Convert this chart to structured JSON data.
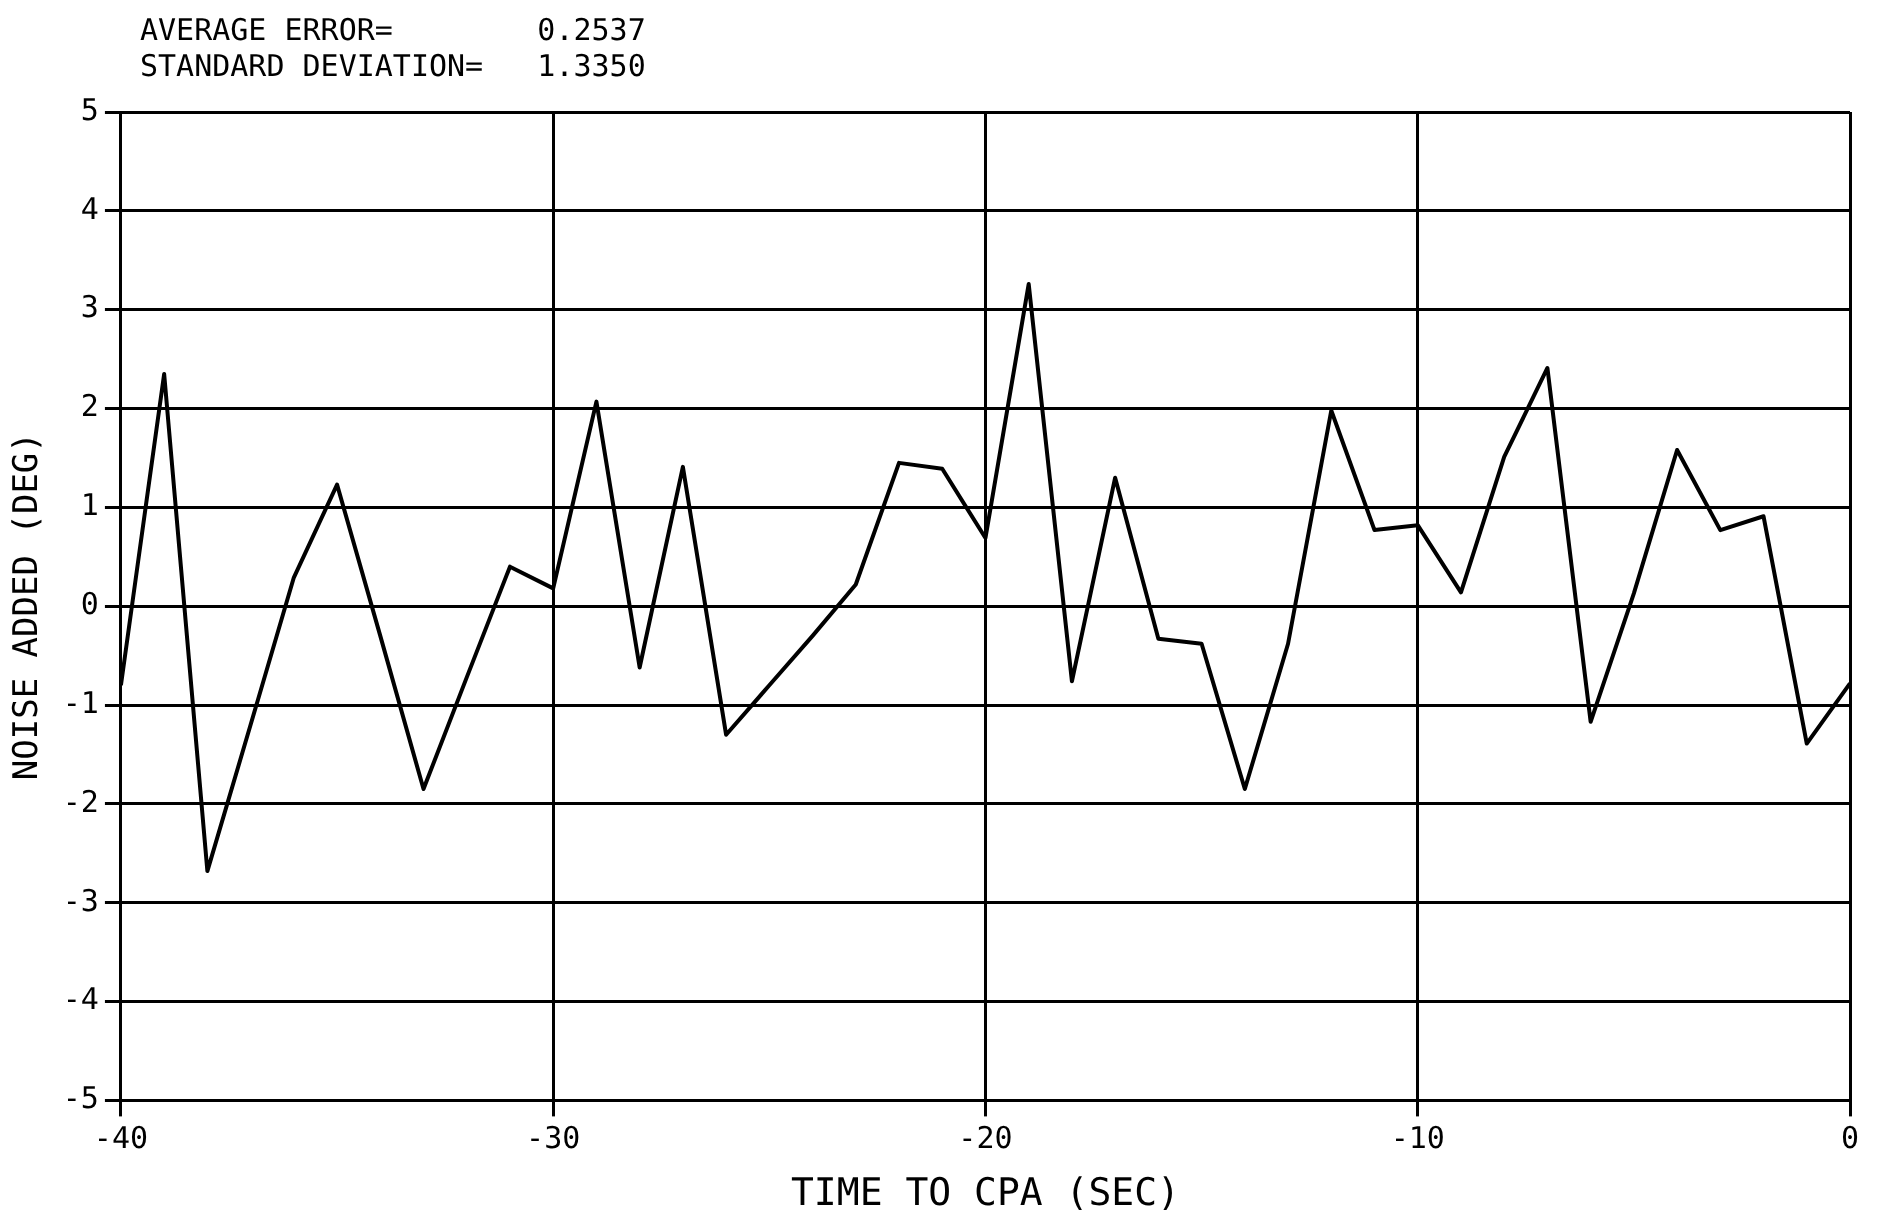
{
  "chart_data": {
    "type": "line",
    "xlabel": "TIME TO CPA (SEC)",
    "ylabel": "NOISE ADDED (DEG)",
    "annotations": [
      "AVERAGE ERROR=        0.2537",
      "STANDARD DEVIATION=   1.3350"
    ],
    "x": [
      -40,
      -39,
      -38,
      -37,
      -36,
      -35,
      -34,
      -33,
      -32,
      -31,
      -30,
      -29,
      -28,
      -27,
      -26,
      -25,
      -24,
      -23,
      -22,
      -21,
      -20,
      -19,
      -18,
      -17,
      -16,
      -15,
      -14,
      -13,
      -12,
      -11,
      -10,
      -9,
      -8,
      -7,
      -6,
      -5,
      -4,
      -3,
      -2,
      -1,
      0
    ],
    "series": [
      {
        "color": "#000000",
        "values": [
          -0.8,
          2.35,
          -2.68,
          -1.2,
          0.29,
          1.23,
          -0.3,
          -1.85,
          -0.72,
          0.4,
          0.18,
          2.07,
          -0.62,
          1.41,
          -1.3,
          -0.8,
          -0.3,
          0.22,
          1.45,
          1.39,
          0.69,
          3.26,
          -0.76,
          1.3,
          -0.33,
          -0.38,
          -1.85,
          -0.38,
          1.98,
          0.77,
          0.82,
          0.14,
          1.51,
          2.41,
          -1.17,
          0.13,
          1.58,
          0.77,
          0.91,
          -1.39,
          -0.78
        ]
      }
    ],
    "xlim": [
      -40,
      0
    ],
    "xticks": [
      -40,
      -30,
      -20,
      -10,
      0
    ],
    "ylim": [
      -5,
      5
    ],
    "yticks": [
      -5,
      -4,
      -3,
      -2,
      -1,
      0,
      1,
      2,
      3,
      4,
      5
    ],
    "grid": true,
    "legend": false,
    "marker": "none",
    "line_style": "solid"
  }
}
